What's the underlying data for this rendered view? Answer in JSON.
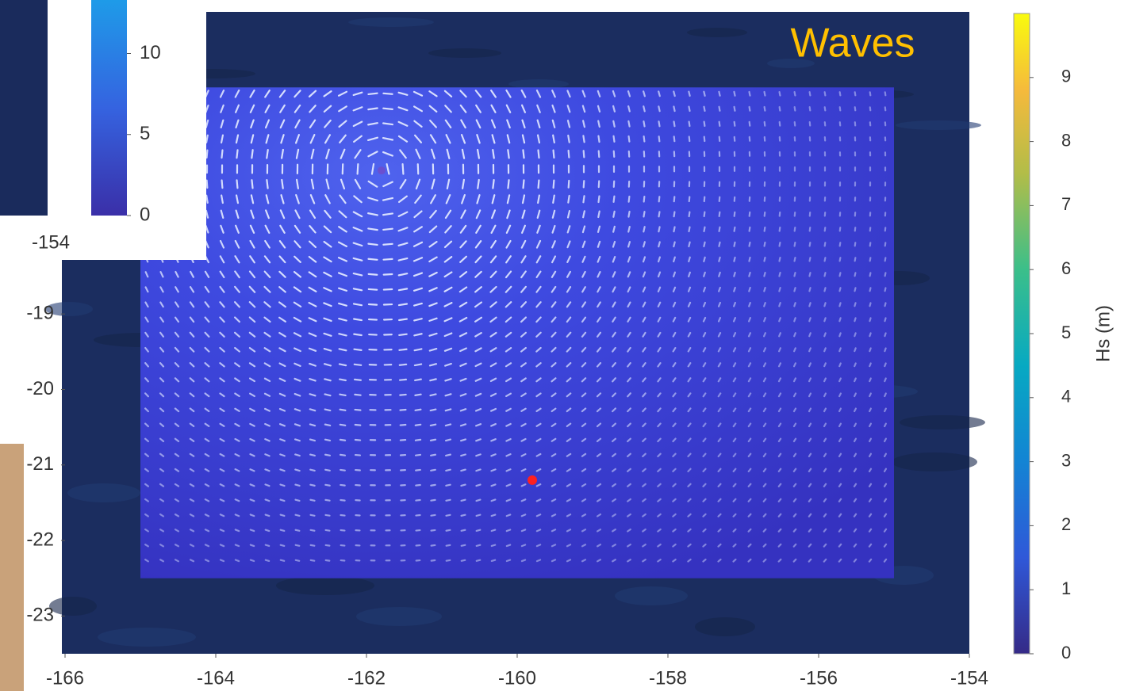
{
  "chart_data": {
    "type": "quiver-map",
    "annotation": "Waves",
    "xlim": [
      -166,
      -154
    ],
    "ylim": [
      -23.5,
      -15
    ],
    "xticks": [
      -166,
      -164,
      -162,
      -160,
      -158,
      -156,
      -154
    ],
    "yticks": [
      -23,
      -22,
      -21,
      -20,
      -19
    ],
    "field": {
      "xlim": [
        -165,
        -155
      ],
      "ylim": [
        -22.5,
        -16
      ]
    },
    "vortex": {
      "x": -161.8,
      "y": -17.1
    },
    "marker": {
      "x": -159.8,
      "y": -21.2,
      "color": "#ff2020"
    },
    "colorbar": {
      "label": "Hs (m)",
      "lim": [
        0,
        10
      ],
      "ticks": [
        0,
        1,
        2,
        3,
        4,
        5,
        6,
        7,
        8,
        9
      ]
    },
    "inset": {
      "lim": [
        0,
        13.3
      ],
      "ticks": [
        0,
        5,
        10
      ],
      "label": "-154"
    }
  }
}
